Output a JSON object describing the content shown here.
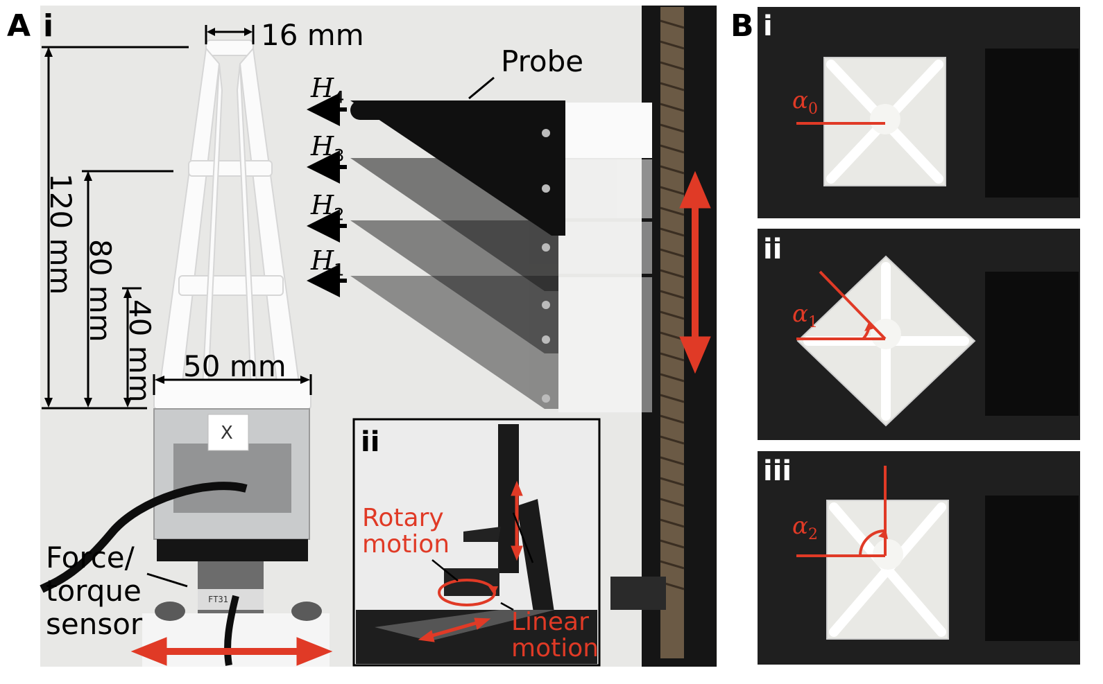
{
  "figure": {
    "panel_a": {
      "label": "A",
      "sub_i": "i",
      "sub_ii": "ii",
      "dim_top": "16 mm",
      "dim_120": "120 mm",
      "dim_80": "80 mm",
      "dim_40": "40 mm",
      "dim_50": "50 mm",
      "probe": "Probe",
      "heights": [
        {
          "sym": "H",
          "sub": "4"
        },
        {
          "sym": "H",
          "sub": "3"
        },
        {
          "sym": "H",
          "sub": "2"
        },
        {
          "sym": "H",
          "sub": "1"
        }
      ],
      "sensor_line1": "Force/",
      "sensor_line2": "torque",
      "sensor_line3": "sensor",
      "plate_mark": "X",
      "sensor_code": "FT31",
      "inset_rotary_1": "Rotary",
      "inset_rotary_2": "motion",
      "inset_linear_1": "Linear",
      "inset_linear_2": "motion"
    },
    "panel_b": {
      "label": "B",
      "rows": [
        {
          "roman": "i",
          "angle_sym": "α",
          "angle_sub": "0"
        },
        {
          "roman": "ii",
          "angle_sym": "α",
          "angle_sub": "1"
        },
        {
          "roman": "iii",
          "angle_sym": "α",
          "angle_sub": "2"
        }
      ]
    },
    "colors": {
      "accent": "#e03a26",
      "photo_bg": "#e9e9e7",
      "dark_bg": "#1c1c1c"
    }
  }
}
